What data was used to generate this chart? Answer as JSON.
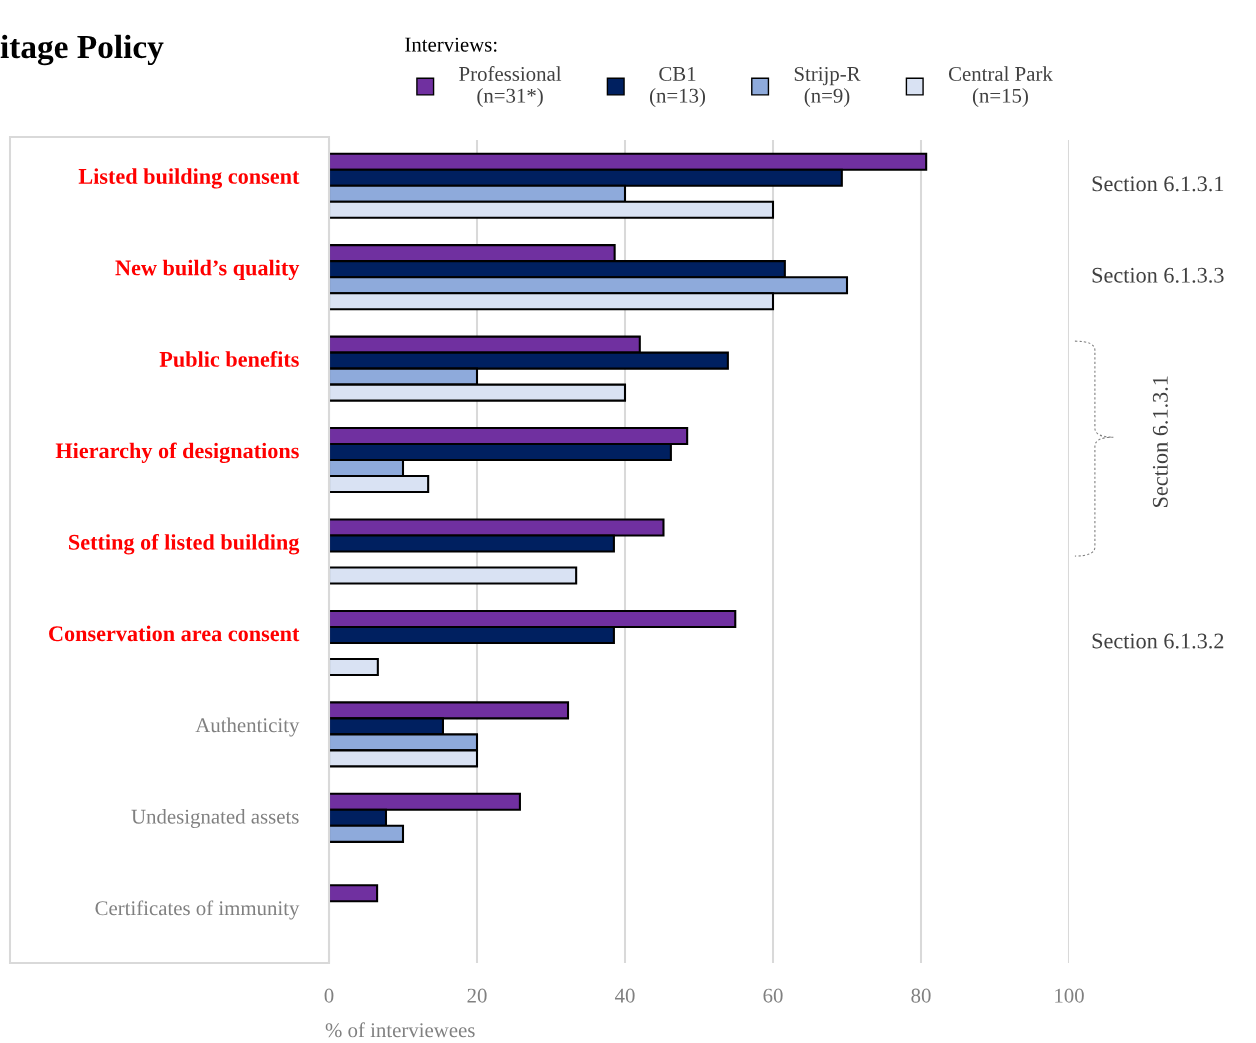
{
  "chart_data": {
    "type": "bar",
    "orientation": "horizontal",
    "title": "itage Policy",
    "xlabel": "% of interviewees",
    "legend_title": "Interviews:",
    "categories": [
      "Listed building consent",
      "New build’s quality",
      "Public benefits",
      "Hierarchy of designations",
      "Setting of listed building",
      "Conservation area consent",
      "Authenticity",
      "Undesignated assets",
      "Certificates of immunity"
    ],
    "series": [
      {
        "name": "Professional\n(n=31*)",
        "color": "#7030a0",
        "values": [
          80.7,
          38.6,
          42,
          48.4,
          45.2,
          54.9,
          32.3,
          25.8,
          6.5
        ]
      },
      {
        "name": "CB1\n(n=13)",
        "color": "#002060",
        "values": [
          69.3,
          61.6,
          53.9,
          46.2,
          38.5,
          38.5,
          15.4,
          7.7,
          null
        ]
      },
      {
        "name": "Strijp-R\n(n=9)",
        "color": "#8eaadb",
        "values": [
          40,
          70,
          20,
          10,
          null,
          null,
          20,
          10,
          null
        ]
      },
      {
        "name": "Central Park\n(n=15)",
        "color": "#d9e2f3",
        "values": [
          60,
          60,
          40,
          13.4,
          33.4,
          6.6,
          20,
          null,
          null
        ]
      }
    ],
    "xlim": [
      0,
      100
    ],
    "xticks": [
      0,
      20,
      40,
      60,
      80,
      100
    ],
    "grid": "x",
    "legend": "top",
    "annotations": [
      "Section 6.1.3.1",
      "Section 6.1.3.3",
      "Section 6.1.3.1",
      "Section 6.1.3.2"
    ]
  }
}
